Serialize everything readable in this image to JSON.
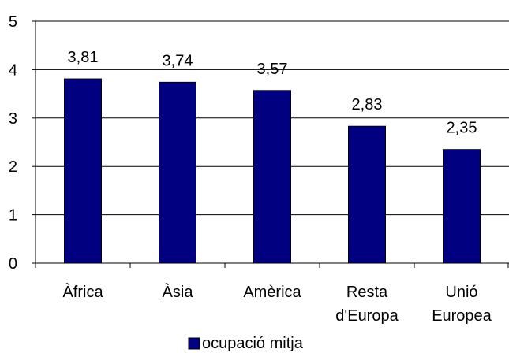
{
  "chart_data": {
    "type": "bar",
    "categories": [
      [
        "Àfrica"
      ],
      [
        "Àsia"
      ],
      [
        "Amèrica"
      ],
      [
        "Resta",
        "d'Europa"
      ],
      [
        "Unió",
        "Europea"
      ]
    ],
    "series": [
      {
        "name": "ocupació mitja",
        "values": [
          3.81,
          3.74,
          3.57,
          2.83,
          2.35
        ],
        "value_labels": [
          "3,81",
          "3,74",
          "3,57",
          "2,83",
          "2,35"
        ],
        "color": "#000080"
      }
    ],
    "y_ticks": [
      "0",
      "1",
      "2",
      "3",
      "4",
      "5"
    ],
    "ylim": [
      0,
      5
    ],
    "grid": true,
    "legend_position": "bottom-center"
  }
}
